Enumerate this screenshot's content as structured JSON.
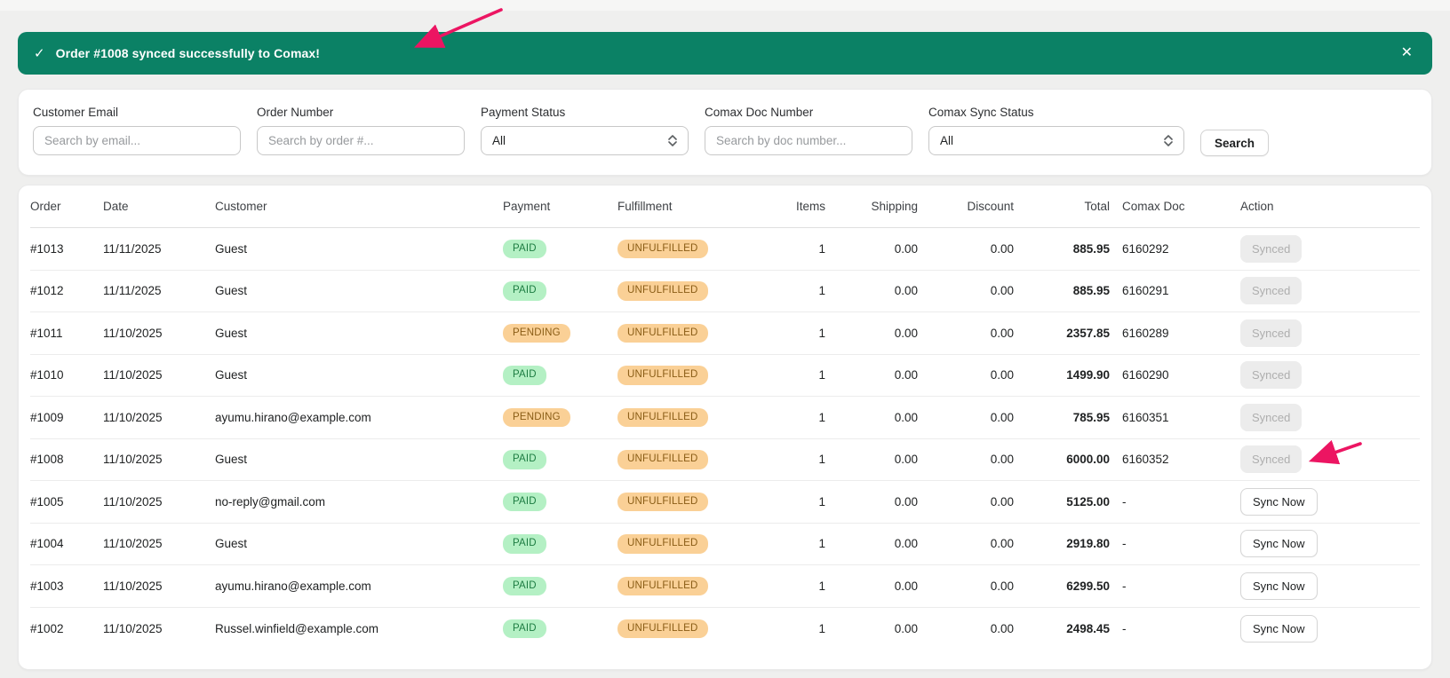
{
  "banner": {
    "check_icon": "✓",
    "message": "Order #1008 synced successfully to Comax!",
    "close_icon": "✕",
    "bg_color": "#0b8165"
  },
  "filters": {
    "fields": [
      {
        "label": "Customer Email",
        "type": "input",
        "placeholder": "Search by email..."
      },
      {
        "label": "Order Number",
        "type": "input",
        "placeholder": "Search by order #..."
      },
      {
        "label": "Payment Status",
        "type": "select",
        "value": "All"
      },
      {
        "label": "Comax Doc Number",
        "type": "input",
        "placeholder": "Search by doc number..."
      },
      {
        "label": "Comax Sync Status",
        "type": "select",
        "value": "All"
      }
    ],
    "search_label": "Search"
  },
  "table": {
    "columns": [
      "Order",
      "Date",
      "Customer",
      "Payment",
      "Fulfillment",
      "Items",
      "Shipping",
      "Discount",
      "Total",
      "Comax Doc",
      "Action"
    ],
    "rows": [
      {
        "order": "#1013",
        "date": "11/11/2025",
        "customer": "Guest",
        "payment": "PAID",
        "fulfillment": "UNFULFILLED",
        "items": "1",
        "shipping": "0.00",
        "discount": "0.00",
        "total": "885.95",
        "comax_doc": "6160292",
        "action": "Synced"
      },
      {
        "order": "#1012",
        "date": "11/11/2025",
        "customer": "Guest",
        "payment": "PAID",
        "fulfillment": "UNFULFILLED",
        "items": "1",
        "shipping": "0.00",
        "discount": "0.00",
        "total": "885.95",
        "comax_doc": "6160291",
        "action": "Synced"
      },
      {
        "order": "#1011",
        "date": "11/10/2025",
        "customer": "Guest",
        "payment": "PENDING",
        "fulfillment": "UNFULFILLED",
        "items": "1",
        "shipping": "0.00",
        "discount": "0.00",
        "total": "2357.85",
        "comax_doc": "6160289",
        "action": "Synced"
      },
      {
        "order": "#1010",
        "date": "11/10/2025",
        "customer": "Guest",
        "payment": "PAID",
        "fulfillment": "UNFULFILLED",
        "items": "1",
        "shipping": "0.00",
        "discount": "0.00",
        "total": "1499.90",
        "comax_doc": "6160290",
        "action": "Synced"
      },
      {
        "order": "#1009",
        "date": "11/10/2025",
        "customer": "ayumu.hirano@example.com",
        "payment": "PENDING",
        "fulfillment": "UNFULFILLED",
        "items": "1",
        "shipping": "0.00",
        "discount": "0.00",
        "total": "785.95",
        "comax_doc": "6160351",
        "action": "Synced"
      },
      {
        "order": "#1008",
        "date": "11/10/2025",
        "customer": "Guest",
        "payment": "PAID",
        "fulfillment": "UNFULFILLED",
        "items": "1",
        "shipping": "0.00",
        "discount": "0.00",
        "total": "6000.00",
        "comax_doc": "6160352",
        "action": "Synced"
      },
      {
        "order": "#1005",
        "date": "11/10/2025",
        "customer": "no-reply@gmail.com",
        "payment": "PAID",
        "fulfillment": "UNFULFILLED",
        "items": "1",
        "shipping": "0.00",
        "discount": "0.00",
        "total": "5125.00",
        "comax_doc": "-",
        "action": "Sync Now"
      },
      {
        "order": "#1004",
        "date": "11/10/2025",
        "customer": "Guest",
        "payment": "PAID",
        "fulfillment": "UNFULFILLED",
        "items": "1",
        "shipping": "0.00",
        "discount": "0.00",
        "total": "2919.80",
        "comax_doc": "-",
        "action": "Sync Now"
      },
      {
        "order": "#1003",
        "date": "11/10/2025",
        "customer": "ayumu.hirano@example.com",
        "payment": "PAID",
        "fulfillment": "UNFULFILLED",
        "items": "1",
        "shipping": "0.00",
        "discount": "0.00",
        "total": "6299.50",
        "comax_doc": "-",
        "action": "Sync Now"
      },
      {
        "order": "#1002",
        "date": "11/10/2025",
        "customer": "Russel.winfield@example.com",
        "payment": "PAID",
        "fulfillment": "UNFULFILLED",
        "items": "1",
        "shipping": "0.00",
        "discount": "0.00",
        "total": "2498.45",
        "comax_doc": "-",
        "action": "Sync Now"
      }
    ]
  },
  "colors": {
    "banner_green": "#0b8165",
    "badge_green_bg": "#b4f0c4",
    "badge_green_fg": "#1d7c42",
    "badge_orange_bg": "#fad096",
    "badge_orange_fg": "#8a5d16",
    "arrow_pink": "#ec1562"
  }
}
